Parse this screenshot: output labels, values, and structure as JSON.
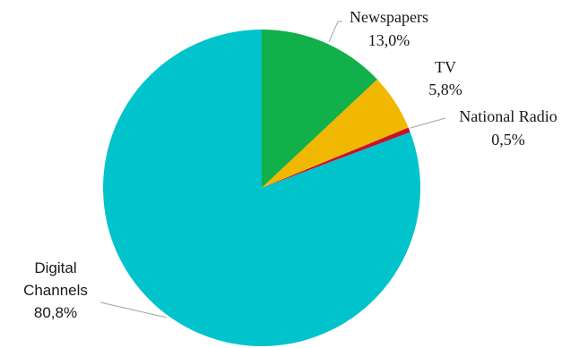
{
  "chart_data": {
    "type": "pie",
    "start_angle_deg": 0,
    "direction": "clockwise",
    "slices": [
      {
        "label": "Newspapers",
        "value": 13.0,
        "value_label": "13,0%",
        "color": "#12b04a"
      },
      {
        "label": "TV",
        "value": 5.8,
        "value_label": "5,8%",
        "color": "#f0b800"
      },
      {
        "label": "National Radio",
        "value": 0.5,
        "value_label": "0,5%",
        "color": "#c8102e"
      },
      {
        "label": "Digital Channels",
        "value": 80.8,
        "value_label": "80,8%",
        "color": "#00c3cb"
      }
    ],
    "label_lines": {
      "digital": [
        "Digital",
        "Channels",
        "80,8%"
      ]
    }
  }
}
